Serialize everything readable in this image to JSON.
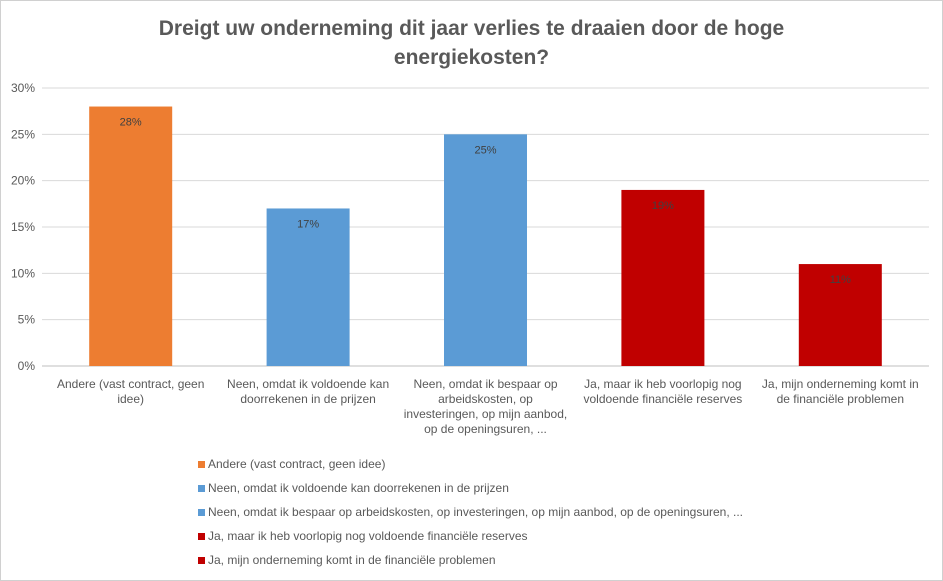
{
  "chart_data": {
    "type": "bar",
    "title": "Dreigt uw onderneming dit jaar verlies te draaien door de hoge energiekosten?",
    "title_lines": [
      "Dreigt uw onderneming dit jaar verlies te draaien door de hoge",
      "energiekosten?"
    ],
    "categories": [
      "Andere (vast contract, geen idee)",
      "Neen, omdat ik voldoende kan doorrekenen in de prijzen",
      "Neen, omdat ik bespaar op arbeidskosten, op investeringen, op mijn aanbod, op de openingsuren, ...",
      "Ja, maar ik heb voorlopig nog voldoende financiële reserves",
      "Ja, mijn onderneming komt in de financiële problemen"
    ],
    "values": [
      28,
      17,
      25,
      19,
      11
    ],
    "data_labels": [
      "28%",
      "17%",
      "25%",
      "19%",
      "11%"
    ],
    "colors": [
      "#ED7D31",
      "#5B9BD5",
      "#5B9BD5",
      "#C00000",
      "#C00000"
    ],
    "ylim": [
      0,
      30
    ],
    "yticks": [
      "0%",
      "5%",
      "10%",
      "15%",
      "20%",
      "25%",
      "30%"
    ],
    "grid": true,
    "legend_position": "bottom",
    "legend": [
      "Andere (vast contract, geen idee)",
      "Neen, omdat ik voldoende kan doorrekenen in de prijzen",
      "Neen, omdat ik bespaar op arbeidskosten, op investeringen, op mijn aanbod, op de openingsuren, ...",
      "Ja, maar ik heb voorlopig nog voldoende financiële reserves",
      "Ja, mijn onderneming komt in de financiële problemen"
    ],
    "xlabel": "",
    "ylabel": ""
  },
  "x_label_lines": [
    [
      "Andere (vast contract, geen",
      "idee)"
    ],
    [
      "Neen, omdat ik voldoende kan",
      "doorrekenen in de prijzen"
    ],
    [
      "Neen, omdat ik bespaar op",
      "arbeidskosten, op",
      "investeringen, op mijn aanbod,",
      "op de openingsuren, ..."
    ],
    [
      "Ja, maar ik heb voorlopig nog",
      "voldoende financiële reserves"
    ],
    [
      "Ja, mijn onderneming komt in",
      "de financiële problemen"
    ]
  ]
}
